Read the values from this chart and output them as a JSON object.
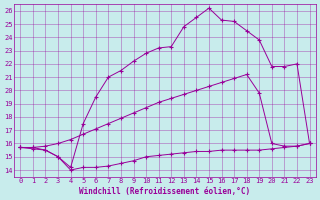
{
  "xlabel": "Windchill (Refroidissement éolien,°C)",
  "background_color": "#c8ecec",
  "line_color": "#990099",
  "xlim": [
    -0.5,
    23.5
  ],
  "ylim": [
    13.5,
    26.5
  ],
  "yticks": [
    14,
    15,
    16,
    17,
    18,
    19,
    20,
    21,
    22,
    23,
    24,
    25,
    26
  ],
  "xticks": [
    0,
    1,
    2,
    3,
    4,
    5,
    6,
    7,
    8,
    9,
    10,
    11,
    12,
    13,
    14,
    15,
    16,
    17,
    18,
    19,
    20,
    21,
    22,
    23
  ],
  "line1_x": [
    0,
    1,
    2,
    3,
    4,
    5,
    6,
    7,
    8,
    9,
    10,
    11,
    12,
    13,
    14,
    15,
    16,
    17,
    18,
    19,
    20,
    21,
    22,
    23
  ],
  "line1_y": [
    15.7,
    15.6,
    15.5,
    15.0,
    14.0,
    14.2,
    14.2,
    14.3,
    14.5,
    14.7,
    15.0,
    15.1,
    15.2,
    15.3,
    15.4,
    15.4,
    15.5,
    15.5,
    15.5,
    15.5,
    15.6,
    15.7,
    15.8,
    16.0
  ],
  "line2_x": [
    0,
    1,
    2,
    3,
    4,
    5,
    6,
    7,
    8,
    9,
    10,
    11,
    12,
    13,
    14,
    15,
    16,
    17,
    18,
    19,
    20,
    21,
    22,
    23
  ],
  "line2_y": [
    15.7,
    15.7,
    15.8,
    16.0,
    16.3,
    16.7,
    17.1,
    17.5,
    17.9,
    18.3,
    18.7,
    19.1,
    19.4,
    19.7,
    20.0,
    20.3,
    20.6,
    20.9,
    21.2,
    19.8,
    16.0,
    15.8,
    15.8,
    16.0
  ],
  "line3_x": [
    0,
    1,
    2,
    3,
    4,
    5,
    6,
    7,
    8,
    9,
    10,
    11,
    12,
    13,
    14,
    15,
    16,
    17,
    18,
    19,
    20,
    21,
    22,
    23
  ],
  "line3_y": [
    15.7,
    15.7,
    15.5,
    15.0,
    14.2,
    17.5,
    19.5,
    21.0,
    21.5,
    22.2,
    22.8,
    23.2,
    23.3,
    24.8,
    25.5,
    26.2,
    25.3,
    25.2,
    24.5,
    23.8,
    21.8,
    21.8,
    22.0,
    16.0
  ]
}
